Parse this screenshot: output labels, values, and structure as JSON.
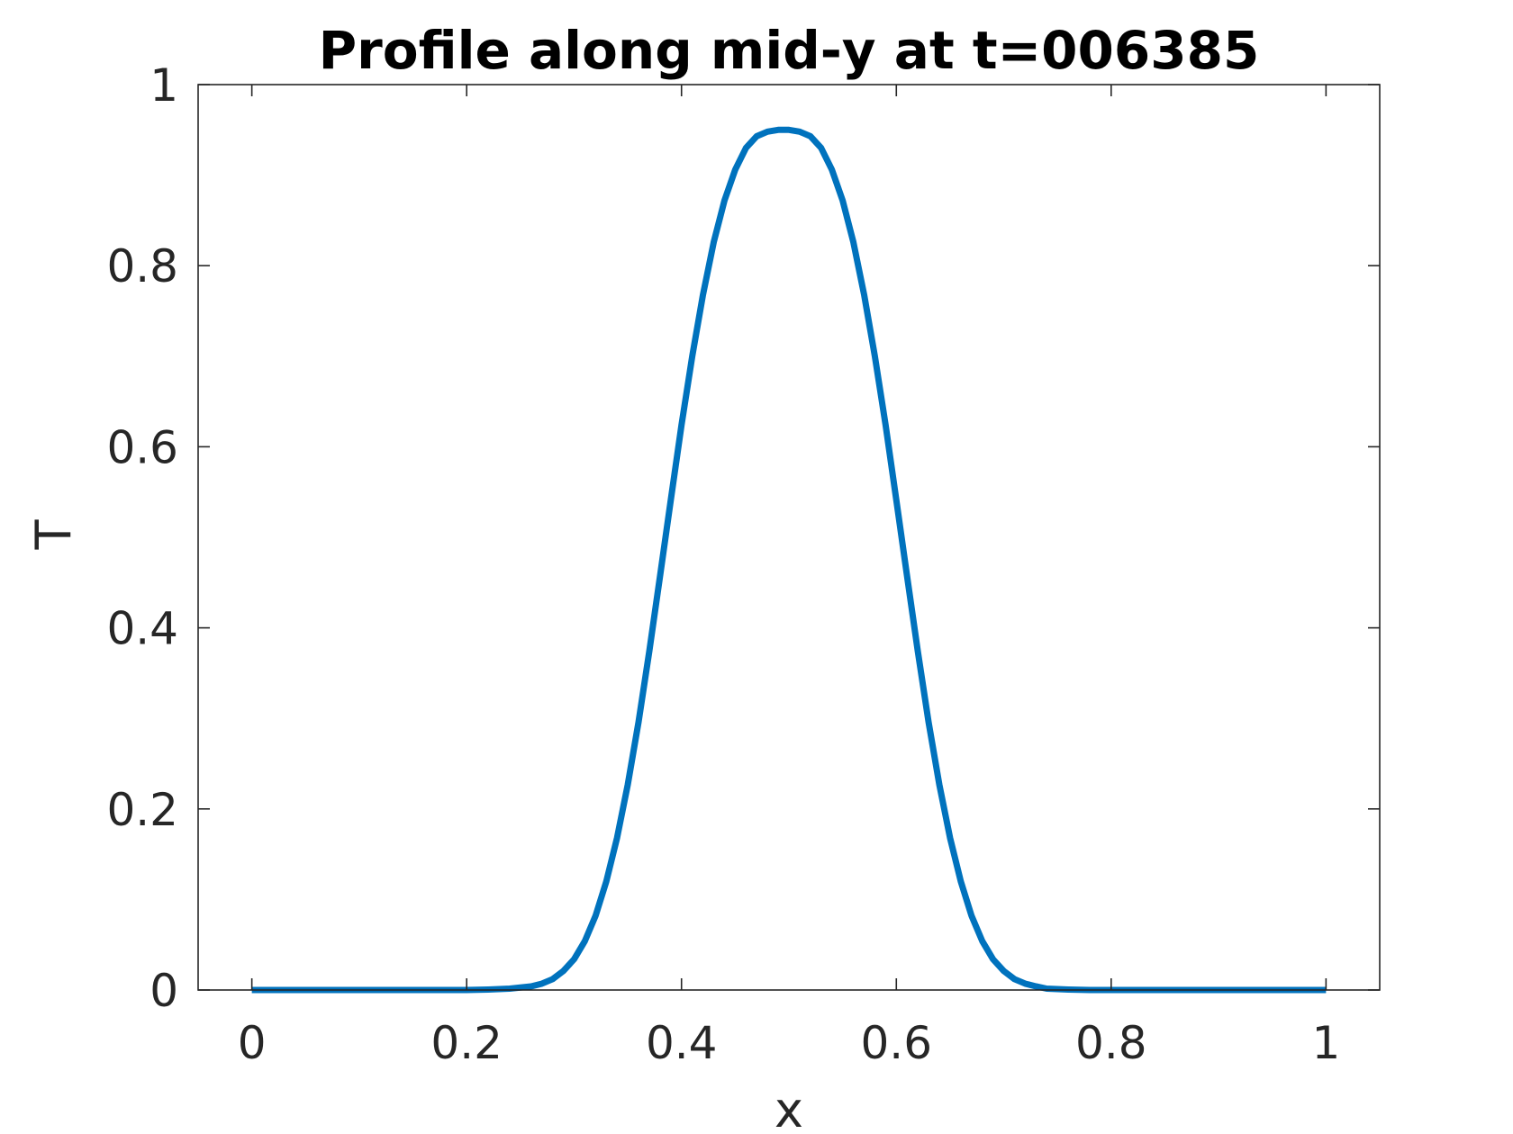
{
  "chart_data": {
    "type": "line",
    "title": "Profile along mid-y at t=006385",
    "xlabel": "x",
    "ylabel": "T",
    "xlim": [
      -0.05,
      1.05
    ],
    "ylim": [
      0,
      1
    ],
    "xticks": [
      0,
      0.2,
      0.4,
      0.6,
      0.8,
      1
    ],
    "xtick_labels": [
      "0",
      "0.2",
      "0.4",
      "0.6",
      "0.8",
      "1"
    ],
    "yticks": [
      0,
      0.2,
      0.4,
      0.6,
      0.8,
      1
    ],
    "ytick_labels": [
      "0",
      "0.2",
      "0.4",
      "0.6",
      "0.8",
      "1"
    ],
    "grid": false,
    "series": [
      {
        "color": "#0072BD",
        "x": [
          0,
          0.05,
          0.1,
          0.15,
          0.2,
          0.22,
          0.24,
          0.26,
          0.27,
          0.28,
          0.29,
          0.3,
          0.31,
          0.32,
          0.33,
          0.34,
          0.35,
          0.36,
          0.37,
          0.38,
          0.39,
          0.4,
          0.41,
          0.42,
          0.43,
          0.44,
          0.45,
          0.46,
          0.47,
          0.48,
          0.49,
          0.5,
          0.51,
          0.52,
          0.53,
          0.54,
          0.55,
          0.56,
          0.57,
          0.58,
          0.59,
          0.6,
          0.61,
          0.62,
          0.63,
          0.64,
          0.65,
          0.66,
          0.67,
          0.68,
          0.69,
          0.7,
          0.71,
          0.72,
          0.73,
          0.74,
          0.76,
          0.78,
          0.8,
          0.85,
          0.9,
          0.95,
          1
        ],
        "y": [
          0,
          0,
          0,
          0,
          0,
          0.0005,
          0.0015,
          0.004,
          0.007,
          0.012,
          0.021,
          0.034,
          0.054,
          0.082,
          0.12,
          0.168,
          0.227,
          0.296,
          0.374,
          0.457,
          0.541,
          0.624,
          0.7,
          0.768,
          0.826,
          0.872,
          0.906,
          0.93,
          0.943,
          0.948,
          0.95,
          0.95,
          0.948,
          0.943,
          0.93,
          0.906,
          0.872,
          0.826,
          0.768,
          0.7,
          0.624,
          0.541,
          0.457,
          0.374,
          0.296,
          0.227,
          0.168,
          0.12,
          0.082,
          0.054,
          0.034,
          0.021,
          0.012,
          0.007,
          0.004,
          0.0015,
          0.0005,
          0,
          0,
          0,
          0,
          0,
          0
        ]
      }
    ]
  }
}
